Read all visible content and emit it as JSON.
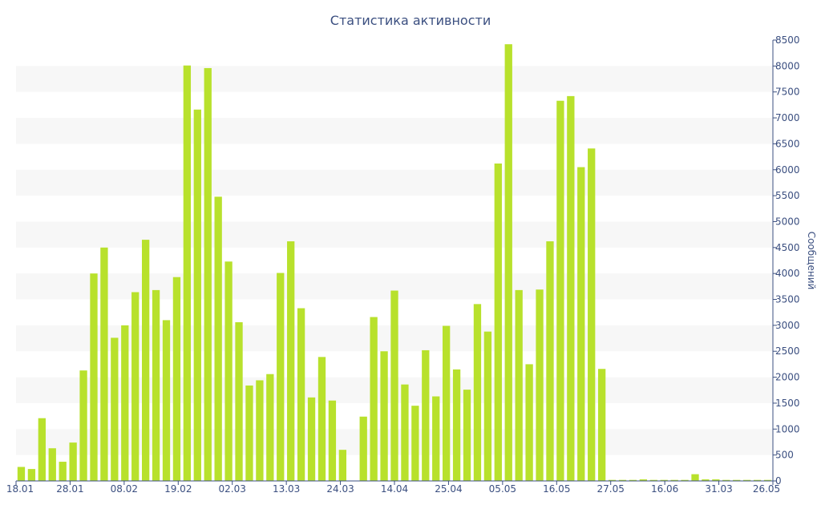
{
  "chart_data": {
    "type": "bar",
    "title": "Статистика активности",
    "ylabel": "Сообщений",
    "xlabel": "",
    "ylim": [
      0,
      8500
    ],
    "yticks": [
      0,
      500,
      1000,
      1500,
      2000,
      2500,
      3000,
      3500,
      4000,
      4500,
      5000,
      5500,
      6000,
      6500,
      7000,
      7500,
      8000,
      8500
    ],
    "y_axis_position": "right",
    "grid": "alternating horizontal bands",
    "x_tick_labels": [
      "18.01",
      "28.01",
      "08.02",
      "19.02",
      "02.03",
      "13.03",
      "24.03",
      "14.04",
      "25.04",
      "05.05",
      "16.05",
      "27.05",
      "16.06",
      "31.03",
      "26.05"
    ],
    "bar_color": "#b8e12c",
    "values": [
      270,
      230,
      1210,
      630,
      370,
      740,
      2130,
      4000,
      4500,
      2760,
      3000,
      3640,
      4650,
      3680,
      3100,
      3930,
      8010,
      7160,
      7960,
      5480,
      4230,
      3060,
      1840,
      1940,
      2060,
      4010,
      4620,
      3330,
      1610,
      2390,
      1550,
      600,
      0,
      1240,
      3160,
      2500,
      3670,
      1860,
      1450,
      2520,
      1630,
      2990,
      2150,
      1760,
      3410,
      2880,
      6120,
      8420,
      3680,
      2250,
      3690,
      4620,
      7330,
      7420,
      6050,
      6410,
      2160,
      20,
      20,
      20,
      30,
      20,
      20,
      20,
      20,
      130,
      30,
      30,
      20,
      20,
      20,
      20,
      20
    ]
  }
}
